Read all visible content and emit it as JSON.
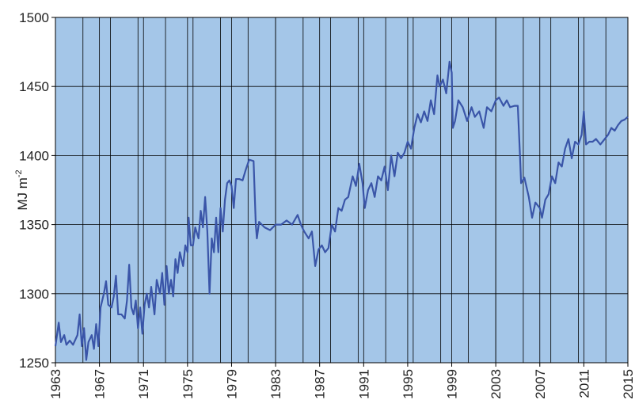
{
  "chart_data": {
    "type": "line",
    "y_label": {
      "text": "MJ m",
      "superscript": "-2"
    },
    "x": [
      1963.0,
      1963.3,
      1963.5,
      1963.8,
      1964.0,
      1964.3,
      1964.6,
      1965.0,
      1965.2,
      1965.4,
      1965.6,
      1965.8,
      1966.0,
      1966.3,
      1966.5,
      1966.7,
      1966.9,
      1967.1,
      1967.4,
      1967.6,
      1967.8,
      1968.1,
      1968.3,
      1968.5,
      1968.7,
      1969.0,
      1969.3,
      1969.5,
      1969.7,
      1969.9,
      1970.1,
      1970.3,
      1970.5,
      1970.7,
      1970.9,
      1971.1,
      1971.3,
      1971.5,
      1971.7,
      1972.0,
      1972.2,
      1972.5,
      1972.7,
      1972.9,
      1973.1,
      1973.3,
      1973.5,
      1973.7,
      1973.9,
      1974.1,
      1974.3,
      1974.6,
      1974.8,
      1975.0,
      1975.1,
      1975.3,
      1975.5,
      1975.7,
      1976.0,
      1976.2,
      1976.4,
      1976.6,
      1976.8,
      1977.0,
      1977.2,
      1977.4,
      1977.6,
      1977.8,
      1978.0,
      1978.2,
      1978.4,
      1978.6,
      1978.8,
      1979.0,
      1979.2,
      1979.4,
      1979.7,
      1980.0,
      1980.3,
      1980.6,
      1981.0,
      1981.2,
      1981.3,
      1981.5,
      1982.0,
      1982.5,
      1983.0,
      1983.5,
      1984.0,
      1984.5,
      1985.0,
      1985.3,
      1985.6,
      1986.0,
      1986.3,
      1986.6,
      1986.9,
      1987.2,
      1987.5,
      1987.8,
      1988.1,
      1988.4,
      1988.7,
      1989.0,
      1989.3,
      1989.6,
      1990.0,
      1990.3,
      1990.6,
      1990.9,
      1991.1,
      1991.4,
      1991.7,
      1992.0,
      1992.3,
      1992.6,
      1992.9,
      1993.2,
      1993.5,
      1993.8,
      1994.1,
      1994.4,
      1994.7,
      1995.0,
      1995.3,
      1995.6,
      1995.9,
      1996.2,
      1996.5,
      1996.8,
      1997.1,
      1997.4,
      1997.7,
      1997.9,
      1998.2,
      1998.5,
      1998.8,
      1999.0,
      1999.1,
      1999.3,
      1999.6,
      2000.0,
      2000.4,
      2000.8,
      2001.1,
      2001.5,
      2001.9,
      2002.2,
      2002.6,
      2003.0,
      2003.3,
      2003.7,
      2004.0,
      2004.3,
      2004.7,
      2005.0,
      2005.2,
      2005.3,
      2005.6,
      2006.0,
      2006.3,
      2006.6,
      2007.0,
      2007.2,
      2007.5,
      2007.8,
      2008.1,
      2008.4,
      2008.7,
      2009.0,
      2009.3,
      2009.6,
      2009.9,
      2010.2,
      2010.5,
      2010.8,
      2011.0,
      2011.2,
      2011.5,
      2011.8,
      2012.1,
      2012.5,
      2012.9,
      2013.2,
      2013.5,
      2013.8,
      2014.1,
      2014.4,
      2014.7,
      2015.0
    ],
    "series": [
      {
        "color": "#3a55a8",
        "values": [
          1262,
          1279,
          1265,
          1270,
          1263,
          1266,
          1263,
          1270,
          1285,
          1262,
          1275,
          1252,
          1265,
          1270,
          1260,
          1278,
          1262,
          1290,
          1300,
          1309,
          1292,
          1290,
          1298,
          1313,
          1285,
          1285,
          1282,
          1295,
          1321,
          1290,
          1285,
          1295,
          1275,
          1290,
          1271,
          1292,
          1300,
          1290,
          1305,
          1285,
          1310,
          1300,
          1315,
          1292,
          1320,
          1300,
          1310,
          1298,
          1325,
          1315,
          1330,
          1320,
          1335,
          1330,
          1355,
          1335,
          1335,
          1348,
          1340,
          1360,
          1348,
          1370,
          1345,
          1300,
          1340,
          1330,
          1355,
          1330,
          1362,
          1345,
          1368,
          1380,
          1382,
          1378,
          1362,
          1383,
          1383,
          1382,
          1390,
          1397,
          1396,
          1350,
          1340,
          1352,
          1348,
          1346,
          1350,
          1350,
          1353,
          1350,
          1357,
          1350,
          1345,
          1340,
          1345,
          1320,
          1332,
          1335,
          1330,
          1333,
          1350,
          1345,
          1362,
          1360,
          1368,
          1370,
          1385,
          1378,
          1394,
          1380,
          1362,
          1375,
          1380,
          1370,
          1385,
          1382,
          1392,
          1375,
          1400,
          1385,
          1402,
          1398,
          1402,
          1410,
          1405,
          1420,
          1430,
          1424,
          1432,
          1425,
          1440,
          1430,
          1458,
          1450,
          1455,
          1445,
          1468,
          1460,
          1420,
          1425,
          1440,
          1435,
          1425,
          1435,
          1428,
          1432,
          1420,
          1435,
          1432,
          1440,
          1442,
          1436,
          1440,
          1435,
          1436,
          1436,
          1400,
          1380,
          1384,
          1370,
          1355,
          1366,
          1362,
          1355,
          1368,
          1372,
          1385,
          1380,
          1395,
          1392,
          1405,
          1412,
          1398,
          1410,
          1408,
          1415,
          1432,
          1408,
          1410,
          1410,
          1412,
          1408,
          1412,
          1415,
          1420,
          1418,
          1422,
          1425,
          1426,
          1428
        ]
      }
    ],
    "xlim": [
      1963,
      2015
    ],
    "xticks": [
      1963,
      1967,
      1971,
      1975,
      1979,
      1983,
      1987,
      1991,
      1995,
      1999,
      2003,
      2007,
      2011,
      2015
    ],
    "x_grid": [
      1965.5,
      1968,
      1970.5,
      1973,
      1975.5,
      1978,
      1980.5,
      1983,
      1985.5,
      1988,
      1990.5,
      1993,
      1995.5,
      1998,
      2000.5,
      2003,
      2005.5,
      2008,
      2010.5,
      2013
    ],
    "ylim": [
      1250,
      1500
    ],
    "yticks": [
      1250,
      1300,
      1350,
      1400,
      1450,
      1500
    ],
    "grid": true,
    "background": "#a4c6e8"
  }
}
